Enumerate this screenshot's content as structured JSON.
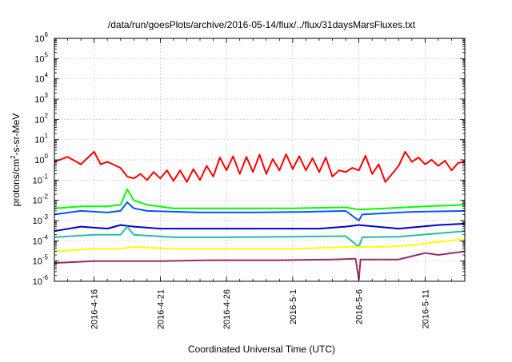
{
  "chart_data": {
    "type": "line",
    "title": "/data/run/goesPlots/archive/2016-05-14/flux/../flux/31daysMarsFluxes.txt",
    "xlabel": "Coordinated Universal Time (UTC)",
    "ylabel": {
      "base": "protons/cm",
      "sup": "2",
      "rest": "-s-sr-MeV"
    },
    "y_scale": "log",
    "ylim_exponents": [
      -6,
      6
    ],
    "y_ticks": [
      {
        "base": "10",
        "exp": "6"
      },
      {
        "base": "10",
        "exp": "5"
      },
      {
        "base": "10",
        "exp": "4"
      },
      {
        "base": "10",
        "exp": "3"
      },
      {
        "base": "10",
        "exp": "2"
      },
      {
        "base": "10",
        "exp": "1"
      },
      {
        "base": "10",
        "exp": "0"
      },
      {
        "base": "10",
        "exp": "-1"
      },
      {
        "base": "10",
        "exp": "-2"
      },
      {
        "base": "10",
        "exp": "-3"
      },
      {
        "base": "10",
        "exp": "-4"
      },
      {
        "base": "10",
        "exp": "-5"
      },
      {
        "base": "10",
        "exp": "-6"
      }
    ],
    "x_range": [
      "2016-04-13",
      "2016-05-14"
    ],
    "x_ticks": [
      "2016-4-16",
      "2016-4-21",
      "2016-4-26",
      "2016-5-1",
      "2016-5-6",
      "2016-5-11"
    ],
    "grid": true,
    "series": [
      {
        "color": "#ff0000",
        "points": [
          [
            "2016-04-13",
            0.8
          ],
          [
            "2016-04-14",
            1.4
          ],
          [
            "2016-04-15",
            0.6
          ],
          [
            "2016-04-16",
            2.5
          ],
          [
            "2016-04-16T12",
            0.6
          ],
          [
            "2016-04-17",
            0.8
          ],
          [
            "2016-04-18",
            0.4
          ],
          [
            "2016-04-18T12",
            0.15
          ],
          [
            "2016-04-19",
            0.12
          ],
          [
            "2016-04-19T12",
            0.2
          ],
          [
            "2016-04-20",
            0.1
          ],
          [
            "2016-04-20T12",
            0.25
          ],
          [
            "2016-04-21",
            0.12
          ],
          [
            "2016-04-21T12",
            0.3
          ],
          [
            "2016-04-22",
            0.09
          ],
          [
            "2016-04-22T12",
            0.3
          ],
          [
            "2016-04-23",
            0.08
          ],
          [
            "2016-04-23T12",
            0.35
          ],
          [
            "2016-04-24",
            0.1
          ],
          [
            "2016-04-24T12",
            0.5
          ],
          [
            "2016-04-25",
            0.15
          ],
          [
            "2016-04-25T12",
            1.3
          ],
          [
            "2016-04-26",
            0.3
          ],
          [
            "2016-04-26T12",
            1.5
          ],
          [
            "2016-04-27",
            0.2
          ],
          [
            "2016-04-27T12",
            1.4
          ],
          [
            "2016-04-28",
            0.25
          ],
          [
            "2016-04-28T12",
            1.8
          ],
          [
            "2016-04-29",
            0.2
          ],
          [
            "2016-04-29T12",
            1.1
          ],
          [
            "2016-04-30",
            0.3
          ],
          [
            "2016-04-30T12",
            1.9
          ],
          [
            "2016-05-01",
            0.35
          ],
          [
            "2016-05-01T12",
            1.5
          ],
          [
            "2016-05-02",
            0.3
          ],
          [
            "2016-05-02T12",
            1.2
          ],
          [
            "2016-05-03",
            0.25
          ],
          [
            "2016-05-03T12",
            1.3
          ],
          [
            "2016-05-04",
            0.15
          ],
          [
            "2016-05-04T12",
            0.3
          ],
          [
            "2016-05-05",
            0.25
          ],
          [
            "2016-05-05T12",
            0.4
          ],
          [
            "2016-05-06",
            0.3
          ],
          [
            "2016-05-06T12",
            1.6
          ],
          [
            "2016-05-07",
            0.2
          ],
          [
            "2016-05-07T12",
            0.6
          ],
          [
            "2016-05-08",
            0.08
          ],
          [
            "2016-05-08T12",
            0.2
          ],
          [
            "2016-05-09",
            0.5
          ],
          [
            "2016-05-09T12",
            2.5
          ],
          [
            "2016-05-10",
            0.8
          ],
          [
            "2016-05-10T12",
            1.3
          ],
          [
            "2016-05-11",
            0.6
          ],
          [
            "2016-05-11T12",
            1.0
          ],
          [
            "2016-05-12",
            0.5
          ],
          [
            "2016-05-12T12",
            0.9
          ],
          [
            "2016-05-13",
            0.3
          ],
          [
            "2016-05-13T12",
            0.7
          ],
          [
            "2016-05-14",
            0.8
          ]
        ]
      },
      {
        "color": "#00ff00",
        "points": [
          [
            "2016-04-13",
            0.004
          ],
          [
            "2016-04-15",
            0.005
          ],
          [
            "2016-04-17",
            0.005
          ],
          [
            "2016-04-18",
            0.006
          ],
          [
            "2016-04-18T12",
            0.035
          ],
          [
            "2016-04-19",
            0.01
          ],
          [
            "2016-04-20",
            0.006
          ],
          [
            "2016-04-22",
            0.004
          ],
          [
            "2016-04-26",
            0.004
          ],
          [
            "2016-05-01",
            0.004
          ],
          [
            "2016-05-05",
            0.0045
          ],
          [
            "2016-05-06",
            0.0035
          ],
          [
            "2016-05-08",
            0.004
          ],
          [
            "2016-05-11",
            0.005
          ],
          [
            "2016-05-14",
            0.006
          ]
        ]
      },
      {
        "color": "#0055ff",
        "points": [
          [
            "2016-04-13",
            0.002
          ],
          [
            "2016-04-15",
            0.003
          ],
          [
            "2016-04-17",
            0.0025
          ],
          [
            "2016-04-18",
            0.003
          ],
          [
            "2016-04-18T12",
            0.008
          ],
          [
            "2016-04-19",
            0.004
          ],
          [
            "2016-04-20",
            0.003
          ],
          [
            "2016-04-24",
            0.0025
          ],
          [
            "2016-04-28",
            0.0025
          ],
          [
            "2016-05-02",
            0.0027
          ],
          [
            "2016-05-05",
            0.003
          ],
          [
            "2016-05-06",
            0.001
          ],
          [
            "2016-05-06T06",
            0.002
          ],
          [
            "2016-05-10",
            0.0027
          ],
          [
            "2016-05-14",
            0.003
          ]
        ]
      },
      {
        "color": "#0000cc",
        "points": [
          [
            "2016-04-13",
            0.0003
          ],
          [
            "2016-04-15",
            0.0005
          ],
          [
            "2016-04-17",
            0.0004
          ],
          [
            "2016-04-18",
            0.0006
          ],
          [
            "2016-04-19",
            0.0005
          ],
          [
            "2016-04-21",
            0.0004
          ],
          [
            "2016-04-25",
            0.0004
          ],
          [
            "2016-04-30",
            0.0004
          ],
          [
            "2016-05-03",
            0.0004
          ],
          [
            "2016-05-05",
            0.0005
          ],
          [
            "2016-05-06",
            0.0006
          ],
          [
            "2016-05-09",
            0.0004
          ],
          [
            "2016-05-12",
            0.0006
          ],
          [
            "2016-05-14",
            0.0007
          ]
        ]
      },
      {
        "color": "#20c0a0",
        "points": [
          [
            "2016-04-13",
            0.00015
          ],
          [
            "2016-04-16",
            0.0002
          ],
          [
            "2016-04-18",
            0.0002
          ],
          [
            "2016-04-18T12",
            0.0005
          ],
          [
            "2016-04-19",
            0.0002
          ],
          [
            "2016-04-22",
            0.00015
          ],
          [
            "2016-04-26",
            0.00015
          ],
          [
            "2016-05-01",
            0.00016
          ],
          [
            "2016-05-05",
            0.00017
          ],
          [
            "2016-05-06",
            5e-05
          ],
          [
            "2016-05-06T06",
            0.00015
          ],
          [
            "2016-05-09",
            0.00016
          ],
          [
            "2016-05-14",
            0.0003
          ]
        ]
      },
      {
        "color": "#ffff00",
        "points": [
          [
            "2016-04-13",
            3e-05
          ],
          [
            "2016-04-16",
            4e-05
          ],
          [
            "2016-04-18",
            4e-05
          ],
          [
            "2016-04-19",
            5e-05
          ],
          [
            "2016-04-22",
            4e-05
          ],
          [
            "2016-04-26",
            4e-05
          ],
          [
            "2016-05-01",
            4e-05
          ],
          [
            "2016-05-05",
            5e-05
          ],
          [
            "2016-05-08",
            5e-05
          ],
          [
            "2016-05-10",
            6e-05
          ],
          [
            "2016-05-12",
            9e-05
          ],
          [
            "2016-05-14",
            0.00012
          ]
        ]
      },
      {
        "color": "#9b2c6b",
        "points": [
          [
            "2016-04-13",
            8e-06
          ],
          [
            "2016-04-16",
            1e-05
          ],
          [
            "2016-04-18",
            1e-05
          ],
          [
            "2016-04-21",
            1e-05
          ],
          [
            "2016-04-25",
            1.1e-05
          ],
          [
            "2016-04-30",
            1.1e-05
          ],
          [
            "2016-05-04",
            1.2e-05
          ],
          [
            "2016-05-05T18",
            1.3e-05
          ],
          [
            "2016-05-06",
            1.2e-06
          ],
          [
            "2016-05-06T03",
            1.2e-05
          ],
          [
            "2016-05-09",
            1.2e-05
          ],
          [
            "2016-05-11",
            2.5e-05
          ],
          [
            "2016-05-12",
            2e-05
          ],
          [
            "2016-05-14",
            3e-05
          ]
        ]
      }
    ]
  }
}
